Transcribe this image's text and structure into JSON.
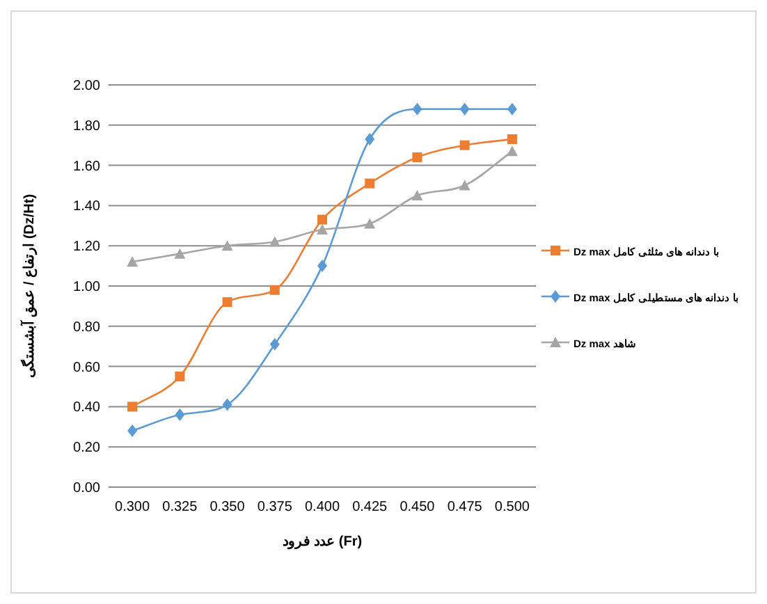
{
  "chart_data": {
    "type": "line",
    "xlabel": "عدد فرود (Fr)",
    "ylabel": "ارتفاع / عمق آبشستگی (Dz/Ht)",
    "categories": [
      "0.300",
      "0.325",
      "0.350",
      "0.375",
      "0.400",
      "0.425",
      "0.450",
      "0.475",
      "0.500"
    ],
    "series": [
      {
        "name": "Dz max با دندانه های مثلثی کامل",
        "color": "#ed7d31",
        "marker": "square",
        "values": [
          0.4,
          0.55,
          0.92,
          0.98,
          1.33,
          1.51,
          1.64,
          1.7,
          1.73
        ]
      },
      {
        "name": "Dz max با دندانه های مستطیلی کامل",
        "color": "#5b9bd5",
        "marker": "diamond",
        "values": [
          0.28,
          0.36,
          0.41,
          0.71,
          1.1,
          1.73,
          1.88,
          1.88,
          1.88
        ]
      },
      {
        "name": "Dz max شاهد",
        "color": "#a5a5a5",
        "marker": "triangle",
        "values": [
          1.12,
          1.16,
          1.2,
          1.22,
          1.28,
          1.31,
          1.45,
          1.5,
          1.67
        ]
      }
    ],
    "ylim": [
      0,
      2
    ],
    "yticks": [
      {
        "value": 0,
        "label": "0.00"
      },
      {
        "value": 0.2,
        "label": "0.20"
      },
      {
        "value": 0.4,
        "label": "0.40"
      },
      {
        "value": 0.6,
        "label": "0.60"
      },
      {
        "value": 0.8,
        "label": "0.80"
      },
      {
        "value": 1.0,
        "label": "1.00"
      },
      {
        "value": 1.2,
        "label": "1.20"
      },
      {
        "value": 1.4,
        "label": "1.40"
      },
      {
        "value": 1.6,
        "label": "1.60"
      },
      {
        "value": 1.8,
        "label": "1.80"
      },
      {
        "value": 2.0,
        "label": "2.00"
      }
    ],
    "grid": "y",
    "legend": "right"
  }
}
